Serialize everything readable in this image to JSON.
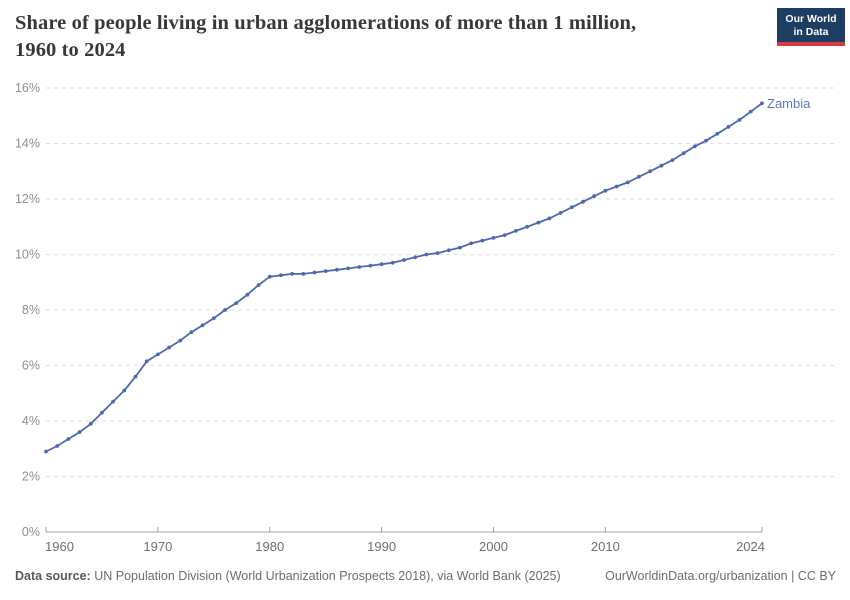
{
  "header": {
    "title_line1": "Share of people living in urban agglomerations of more than 1 million,",
    "title_line2": "1960 to 2024",
    "logo_line1": "Our World",
    "logo_line2": "in Data",
    "logo_bg": "#1d3d63",
    "logo_accent": "#d73c45"
  },
  "chart_data": {
    "type": "line",
    "title": "Share of people living in urban agglomerations of more than 1 million, 1960 to 2024",
    "xlim": [
      1960,
      2024
    ],
    "ylim": [
      0,
      16
    ],
    "xticks": [
      1960,
      1970,
      1980,
      1990,
      2000,
      2010,
      2024
    ],
    "yticks": [
      0,
      2,
      4,
      6,
      8,
      10,
      12,
      14,
      16
    ],
    "ytick_suffix": "%",
    "grid": "horizontal dashed",
    "legend": "entity label at line end",
    "series": [
      {
        "name": "Zambia",
        "color": "#4c6aad",
        "label_color": "#5b7ac1",
        "years": [
          1960,
          1961,
          1962,
          1963,
          1964,
          1965,
          1966,
          1967,
          1968,
          1969,
          1970,
          1971,
          1972,
          1973,
          1974,
          1975,
          1976,
          1977,
          1978,
          1979,
          1980,
          1981,
          1982,
          1983,
          1984,
          1985,
          1986,
          1987,
          1988,
          1989,
          1990,
          1991,
          1992,
          1993,
          1994,
          1995,
          1996,
          1997,
          1998,
          1999,
          2000,
          2001,
          2002,
          2003,
          2004,
          2005,
          2006,
          2007,
          2008,
          2009,
          2010,
          2011,
          2012,
          2013,
          2014,
          2015,
          2016,
          2017,
          2018,
          2019,
          2020,
          2021,
          2022,
          2023,
          2024
        ],
        "values": [
          2.9,
          3.1,
          3.35,
          3.6,
          3.9,
          4.3,
          4.7,
          5.1,
          5.6,
          6.15,
          6.4,
          6.65,
          6.9,
          7.2,
          7.45,
          7.7,
          8.0,
          8.25,
          8.55,
          8.9,
          9.2,
          9.25,
          9.3,
          9.3,
          9.35,
          9.4,
          9.45,
          9.5,
          9.55,
          9.6,
          9.65,
          9.7,
          9.8,
          9.9,
          10.0,
          10.05,
          10.15,
          10.25,
          10.4,
          10.5,
          10.6,
          10.7,
          10.85,
          11.0,
          11.15,
          11.3,
          11.5,
          11.7,
          11.9,
          12.1,
          12.3,
          12.45,
          12.6,
          12.8,
          13.0,
          13.2,
          13.4,
          13.65,
          13.9,
          14.1,
          14.35,
          14.6,
          14.85,
          15.15,
          15.45
        ]
      }
    ]
  },
  "footer": {
    "source_label": "Data source:",
    "source_text": "UN Population Division (World Urbanization Prospects 2018), via World Bank (2025)",
    "link_text": "OurWorldinData.org/urbanization | CC BY"
  }
}
